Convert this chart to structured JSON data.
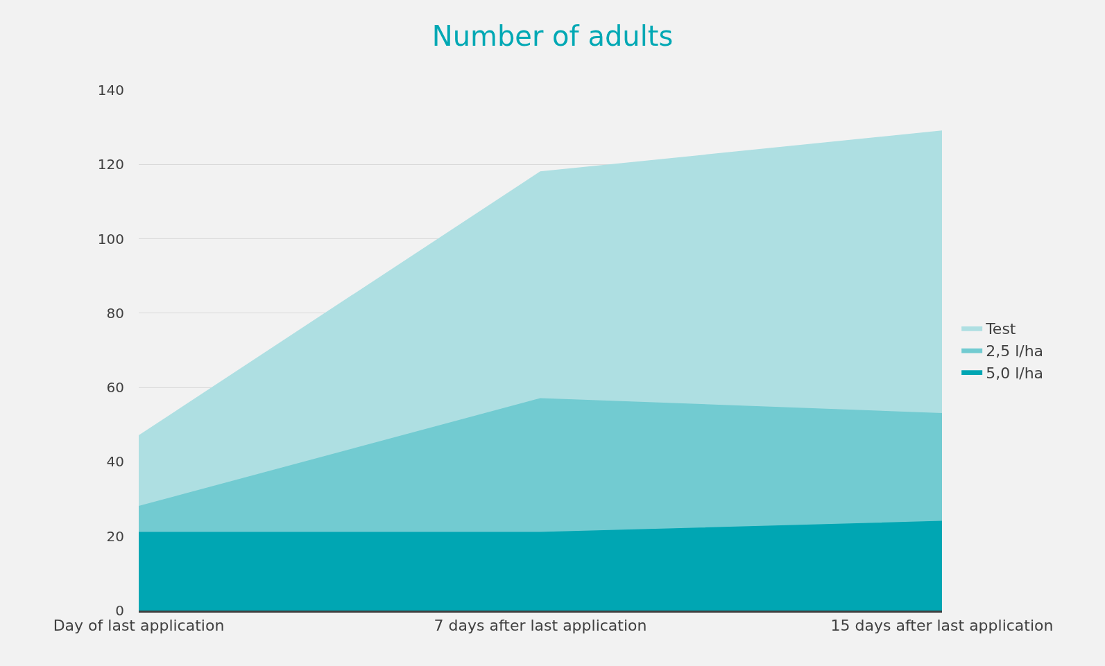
{
  "chart_data": {
    "type": "area",
    "title": "Number of adults",
    "categories": [
      "Day of last application",
      "7 days after last application",
      "15 days after last application"
    ],
    "series": [
      {
        "name": "Test",
        "color": "#aedfe2",
        "values": [
          47,
          118,
          129
        ]
      },
      {
        "name": "2,5 l/ha",
        "color": "#72cbd1",
        "values": [
          28,
          57,
          53
        ]
      },
      {
        "name": "5,0 l/ha",
        "color": "#00a6b3",
        "values": [
          21,
          21,
          24
        ]
      }
    ],
    "ylim": [
      0,
      140
    ],
    "yticks": [
      0,
      20,
      40,
      60,
      80,
      100,
      120,
      140
    ],
    "grid": "y",
    "legend": "right"
  }
}
